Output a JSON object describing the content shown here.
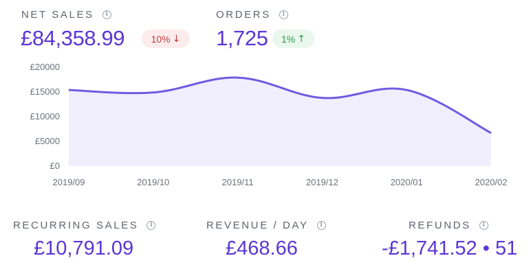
{
  "net_sales": {
    "label": "NET SALES",
    "value": "£84,358.99",
    "change": "10%",
    "change_direction": "down",
    "info_icon": "info-icon"
  },
  "orders": {
    "label": "ORDERS",
    "value": "1,725",
    "change": "1%",
    "change_direction": "up",
    "info_icon": "info-icon"
  },
  "recurring_sales": {
    "label": "RECURRING SALES",
    "value": "£10,791.09"
  },
  "revenue_per_day": {
    "label": "REVENUE / DAY",
    "value": "£468.66"
  },
  "refunds": {
    "label": "REFUNDS",
    "value": "-£1,741.52 • 51"
  },
  "colors": {
    "accent": "#5b35d5",
    "line": "#6f5be0",
    "area_fill": "#f1eefd",
    "negative": "#c23a3a",
    "positive": "#2d9a48"
  },
  "chart_data": {
    "type": "area",
    "categories": [
      "2019/09",
      "2019/10",
      "2019/11",
      "2019/12",
      "2020/01",
      "2020/02"
    ],
    "values": [
      15400,
      14900,
      17900,
      13800,
      15400,
      6700
    ],
    "yticks": [
      "£0",
      "£5000",
      "£10000",
      "£15000",
      "£20000"
    ],
    "ylim": [
      0,
      20000
    ],
    "grid": false,
    "legend": "none",
    "smooth": true
  }
}
